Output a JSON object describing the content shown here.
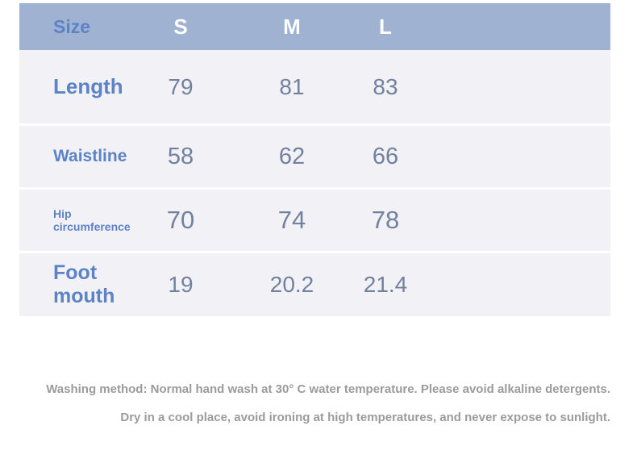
{
  "table": {
    "header": {
      "label": "Size",
      "columns": [
        "S",
        "M",
        "L"
      ]
    },
    "rows": [
      {
        "label": "Length",
        "values": [
          "79",
          "81",
          "83"
        ]
      },
      {
        "label": "Waistline",
        "values": [
          "58",
          "62",
          "66"
        ]
      },
      {
        "label": "Hip circumference",
        "values": [
          "70",
          "74",
          "78"
        ]
      },
      {
        "label": "Foot mouth",
        "values": [
          "19",
          "20.2",
          "21.4"
        ]
      }
    ]
  },
  "care_notes": {
    "line1": "Washing method: Normal hand wash at 30° C water temperature. Please avoid alkaline detergents.",
    "line2": "Dry in a cool place, avoid ironing at high temperatures, and never expose to sunlight."
  },
  "colors": {
    "header_bg": "#9fb2d2",
    "row_bg": "#f2f2f6",
    "divider": "#ffffff",
    "label_text": "#5b83c5",
    "value_text": "#72819e",
    "header_text": "#ffffff",
    "note_text": "#9b9b9b"
  },
  "chart_data": {
    "type": "table",
    "title": "Size",
    "columns": [
      "Size",
      "S",
      "M",
      "L"
    ],
    "rows": [
      [
        "Length",
        79,
        81,
        83
      ],
      [
        "Waistline",
        58,
        62,
        66
      ],
      [
        "Hip circumference",
        70,
        74,
        78
      ],
      [
        "Foot mouth",
        19,
        20.2,
        21.4
      ]
    ],
    "annotations": [
      "Washing method: Normal hand wash at 30° C water temperature. Please avoid alkaline detergents.",
      "Dry in a cool place, avoid ironing at high temperatures, and never expose to sunlight."
    ]
  }
}
